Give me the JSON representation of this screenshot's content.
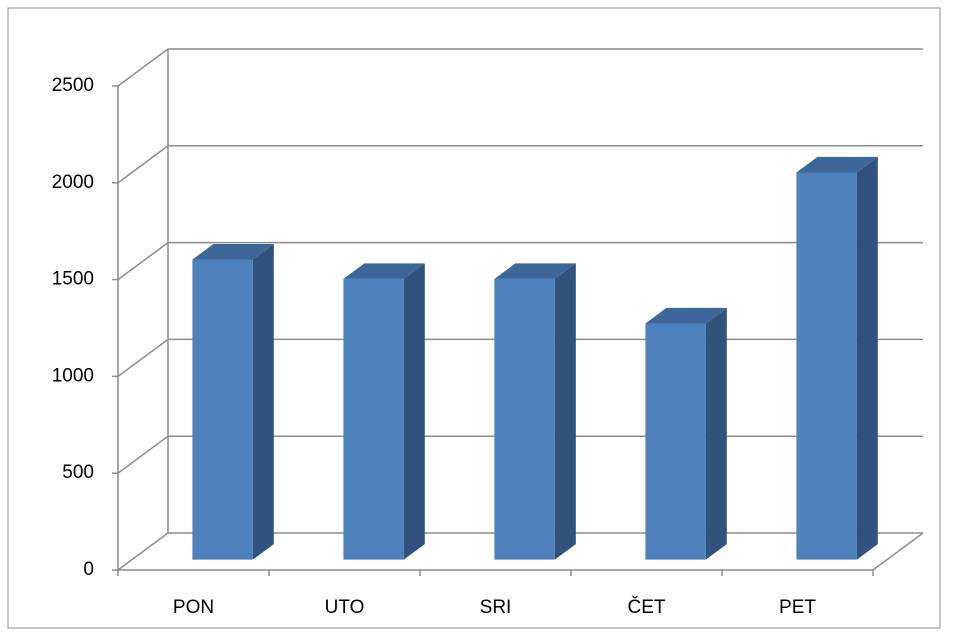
{
  "chart_data": {
    "type": "bar3d",
    "categories": [
      "PON",
      "UTO",
      "SRI",
      "ČET",
      "PET"
    ],
    "values": [
      1550,
      1450,
      1450,
      1220,
      2000
    ],
    "color": "#4f81bd",
    "ylim": [
      0,
      2500
    ],
    "yticks": [
      0,
      500,
      1000,
      1500,
      2000,
      2500
    ],
    "grid": true
  }
}
